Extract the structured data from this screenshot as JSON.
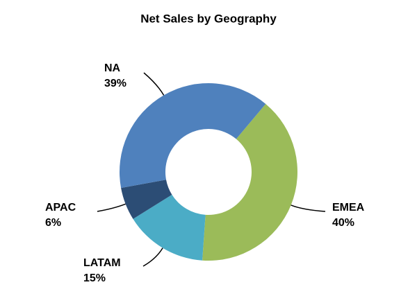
{
  "chart_data": {
    "type": "donut",
    "title": "Net Sales by Geography",
    "categories": [
      "EMEA",
      "LATAM",
      "APAC",
      "NA"
    ],
    "values": [
      40,
      15,
      6,
      39
    ],
    "value_labels": [
      "40%",
      "15%",
      "6%",
      "39%"
    ],
    "colors": [
      "#9bbb59",
      "#4bacc6",
      "#2c4d75",
      "#4f81bd"
    ]
  }
}
